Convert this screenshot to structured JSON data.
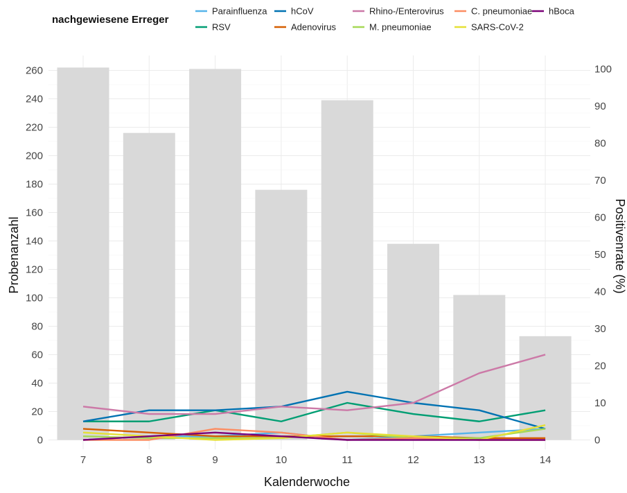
{
  "chart_data": {
    "type": "bar",
    "legend_title": "nachgewiesene Erreger",
    "xlabel": "Kalenderwoche",
    "ylabel": "Probenanzahl",
    "y2label": "Positivenrate (%)",
    "categories": [
      "7",
      "8",
      "9",
      "10",
      "11",
      "12",
      "13",
      "14"
    ],
    "ylim": [
      0,
      270
    ],
    "y_ticks": [
      0,
      20,
      40,
      60,
      80,
      100,
      120,
      140,
      160,
      180,
      200,
      220,
      240,
      260
    ],
    "y2lim": [
      0,
      102.5
    ],
    "y2_ticks": [
      0,
      10,
      20,
      30,
      40,
      50,
      60,
      70,
      80,
      90,
      100
    ],
    "grid": true,
    "legend_position": "top",
    "bars": {
      "color": "#d9d9d9",
      "values": [
        262,
        216,
        261,
        176,
        239,
        138,
        102,
        73
      ]
    },
    "series": [
      {
        "name": "Parainfluenza",
        "color": "#56b4e9",
        "values": [
          0,
          1,
          1,
          2,
          0,
          1,
          2,
          3
        ]
      },
      {
        "name": "RSV",
        "color": "#009e73",
        "values": [
          5,
          5,
          8,
          5,
          10,
          7,
          5,
          8
        ]
      },
      {
        "name": "hCoV",
        "color": "#0072b2",
        "values": [
          5,
          8,
          8,
          9,
          13,
          10,
          8,
          3
        ]
      },
      {
        "name": "Adenovirus",
        "color": "#d55e00",
        "values": [
          3,
          2,
          1,
          1,
          1,
          1,
          0.5,
          0.5
        ]
      },
      {
        "name": "Rhino-/Enterovirus",
        "color": "#cc79a7",
        "values": [
          9,
          7,
          7,
          9,
          8,
          10,
          18,
          23
        ]
      },
      {
        "name": "M. pneumoniae",
        "color": "#a6d854",
        "values": [
          1,
          0.5,
          0.5,
          0.5,
          2,
          0.5,
          0.5,
          3
        ]
      },
      {
        "name": "C. pneumoniae",
        "color": "#fc8d62",
        "values": [
          0,
          0,
          3,
          2,
          0,
          0.5,
          0,
          0
        ]
      },
      {
        "name": "SARS-CoV-2",
        "color": "#e5e035",
        "values": [
          2,
          1,
          0,
          0.5,
          2,
          1,
          0,
          4
        ]
      },
      {
        "name": "hBoca",
        "color": "#7a0177",
        "values": [
          0,
          1,
          2,
          1,
          0,
          0,
          0,
          0
        ]
      }
    ]
  }
}
